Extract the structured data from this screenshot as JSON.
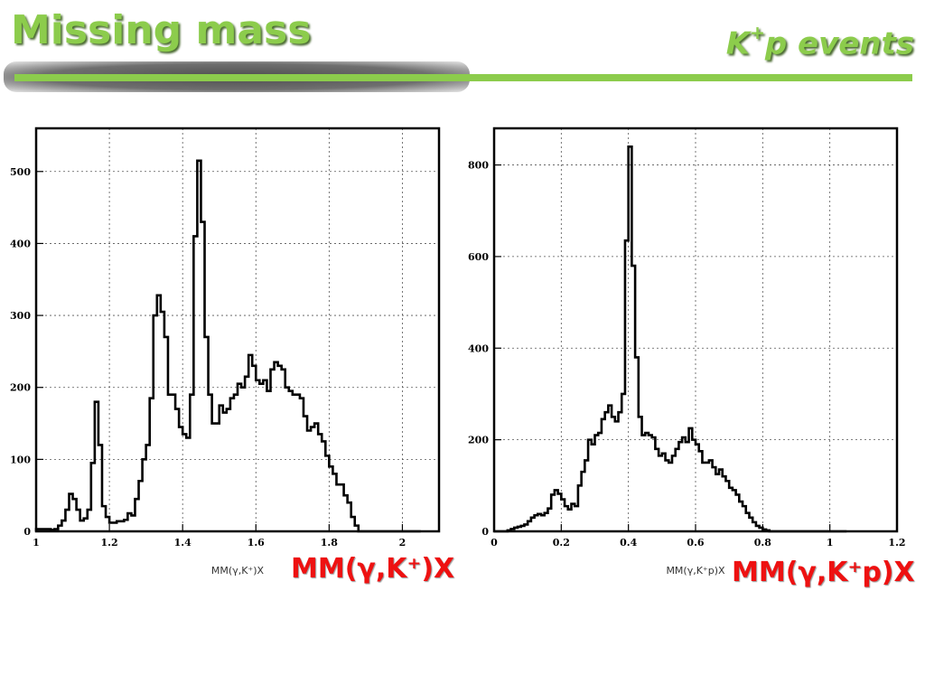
{
  "header": {
    "title": "Missing mass",
    "subtitle_main": "K",
    "subtitle_sup": "+",
    "subtitle_rest": "p events"
  },
  "colors": {
    "accent": "#8ccc4c",
    "label": "#ee1111"
  },
  "labels": {
    "left": "MM(γ,K⁺)X",
    "right": "MM(γ,K⁺p)X"
  },
  "chart_data": [
    {
      "type": "histogram",
      "xlabel": "MM(γ,K⁺)X",
      "xlim": [
        1,
        2.1
      ],
      "ylim": [
        0,
        560
      ],
      "xticks": [
        1,
        1.2,
        1.4,
        1.6,
        1.8,
        2
      ],
      "yticks": [
        0,
        100,
        200,
        300,
        400,
        500
      ],
      "grid": true,
      "bin_width": 0.01,
      "x": [
        1.0,
        1.01,
        1.02,
        1.03,
        1.04,
        1.05,
        1.06,
        1.07,
        1.08,
        1.09,
        1.1,
        1.11,
        1.12,
        1.13,
        1.14,
        1.15,
        1.16,
        1.17,
        1.18,
        1.19,
        1.2,
        1.21,
        1.22,
        1.23,
        1.24,
        1.25,
        1.26,
        1.27,
        1.28,
        1.29,
        1.3,
        1.31,
        1.32,
        1.33,
        1.34,
        1.35,
        1.36,
        1.37,
        1.38,
        1.39,
        1.4,
        1.41,
        1.42,
        1.43,
        1.44,
        1.45,
        1.46,
        1.47,
        1.48,
        1.49,
        1.5,
        1.51,
        1.52,
        1.53,
        1.54,
        1.55,
        1.56,
        1.57,
        1.58,
        1.59,
        1.6,
        1.61,
        1.62,
        1.63,
        1.64,
        1.65,
        1.66,
        1.67,
        1.68,
        1.69,
        1.7,
        1.71,
        1.72,
        1.73,
        1.74,
        1.75,
        1.76,
        1.77,
        1.78,
        1.79,
        1.8,
        1.81,
        1.82,
        1.83,
        1.84,
        1.85,
        1.86,
        1.87,
        1.88,
        1.89,
        1.9,
        1.91,
        1.92,
        1.93,
        1.94,
        1.95,
        1.96,
        1.97,
        1.98,
        1.99,
        2.0,
        2.01,
        2.02,
        2.03,
        2.04
      ],
      "values": [
        3,
        3,
        3,
        3,
        2,
        3,
        8,
        15,
        30,
        52,
        45,
        30,
        15,
        18,
        30,
        95,
        180,
        120,
        35,
        20,
        12,
        12,
        14,
        14,
        16,
        25,
        22,
        45,
        70,
        100,
        120,
        185,
        300,
        328,
        305,
        270,
        190,
        190,
        170,
        145,
        135,
        130,
        190,
        410,
        515,
        430,
        270,
        190,
        150,
        150,
        175,
        165,
        170,
        185,
        190,
        205,
        200,
        215,
        245,
        230,
        210,
        205,
        210,
        195,
        225,
        235,
        230,
        225,
        200,
        195,
        190,
        190,
        185,
        160,
        140,
        145,
        150,
        135,
        125,
        105,
        90,
        80,
        65,
        65,
        50,
        40,
        20,
        8,
        0,
        0,
        0,
        0,
        0,
        0,
        0,
        0,
        0,
        0,
        0,
        0,
        0,
        0,
        0,
        0,
        0
      ]
    },
    {
      "type": "histogram",
      "xlabel": "MM(γ,K⁺p)X",
      "xlim": [
        0,
        1.2
      ],
      "ylim": [
        0,
        880
      ],
      "xticks": [
        0,
        0.2,
        0.4,
        0.6,
        0.8,
        1,
        1.2
      ],
      "yticks": [
        0,
        200,
        400,
        600,
        800
      ],
      "grid": true,
      "bin_width": 0.01,
      "x": [
        0.0,
        0.01,
        0.02,
        0.03,
        0.04,
        0.05,
        0.06,
        0.07,
        0.08,
        0.09,
        0.1,
        0.11,
        0.12,
        0.13,
        0.14,
        0.15,
        0.16,
        0.17,
        0.18,
        0.19,
        0.2,
        0.21,
        0.22,
        0.23,
        0.24,
        0.25,
        0.26,
        0.27,
        0.28,
        0.29,
        0.3,
        0.31,
        0.32,
        0.33,
        0.34,
        0.35,
        0.36,
        0.37,
        0.38,
        0.39,
        0.4,
        0.41,
        0.42,
        0.43,
        0.44,
        0.45,
        0.46,
        0.47,
        0.48,
        0.49,
        0.5,
        0.51,
        0.52,
        0.53,
        0.54,
        0.55,
        0.56,
        0.57,
        0.58,
        0.59,
        0.6,
        0.61,
        0.62,
        0.63,
        0.64,
        0.65,
        0.66,
        0.67,
        0.68,
        0.69,
        0.7,
        0.71,
        0.72,
        0.73,
        0.74,
        0.75,
        0.76,
        0.77,
        0.78,
        0.79,
        0.8,
        0.81,
        0.82,
        0.83,
        0.84,
        0.85,
        0.86,
        0.87,
        0.88,
        0.89,
        0.9,
        0.91,
        0.92,
        0.93,
        0.94,
        0.95,
        0.96,
        0.97,
        0.98,
        0.99,
        1.0,
        1.01,
        1.02,
        1.03,
        1.04
      ],
      "values": [
        0,
        0,
        0,
        0,
        2,
        5,
        8,
        10,
        12,
        15,
        22,
        30,
        35,
        38,
        35,
        40,
        50,
        80,
        90,
        82,
        70,
        55,
        48,
        60,
        55,
        100,
        130,
        155,
        200,
        190,
        210,
        215,
        245,
        260,
        275,
        250,
        240,
        260,
        300,
        635,
        840,
        580,
        380,
        250,
        210,
        215,
        210,
        205,
        180,
        165,
        170,
        155,
        150,
        165,
        180,
        195,
        205,
        195,
        225,
        200,
        190,
        175,
        150,
        150,
        155,
        140,
        125,
        135,
        120,
        110,
        95,
        90,
        80,
        65,
        55,
        40,
        30,
        20,
        12,
        8,
        4,
        2,
        0,
        0,
        0,
        0,
        0,
        0,
        0,
        0,
        0,
        0,
        0,
        0,
        0,
        0,
        0,
        0,
        0,
        0,
        0,
        0,
        0,
        0,
        0
      ]
    }
  ]
}
